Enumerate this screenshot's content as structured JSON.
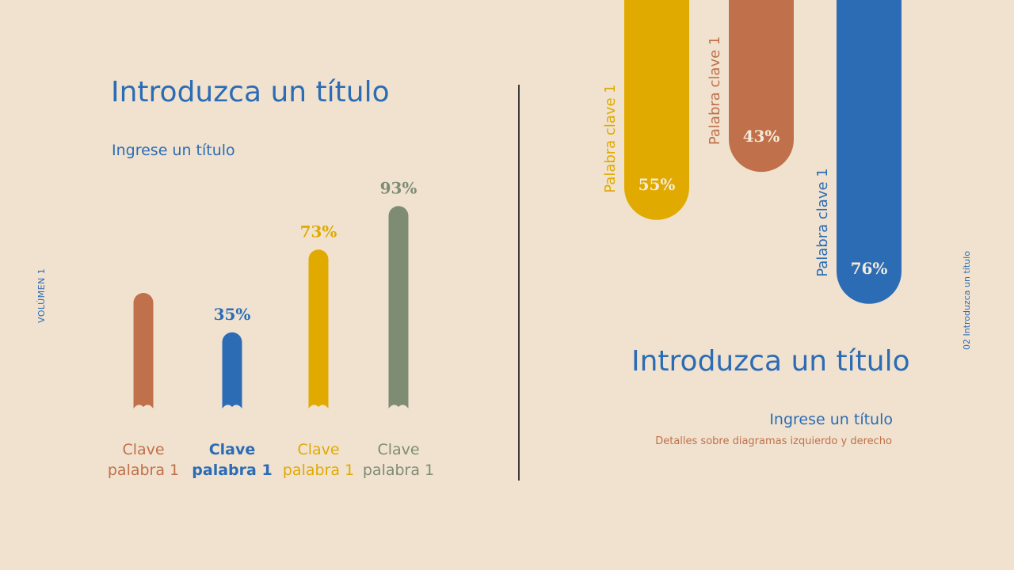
{
  "side": {
    "volume": "VOLÚMEN 1",
    "page": "02 Introduzca un título"
  },
  "left": {
    "title": "Introduzca un título",
    "subtitle": "Ingrese un título"
  },
  "right": {
    "title": "Introduzca un título",
    "subtitle": "Ingrese un título",
    "detail": "Detalles sobre diagramas izquierdo y derecho"
  },
  "colors": {
    "background": "#f0e2cf",
    "blue": "#2b6cb5",
    "orange": "#c0704a",
    "yellow": "#e0aa00",
    "green": "#7e8c74"
  },
  "chart_data": [
    {
      "type": "bar",
      "title": "",
      "categories": [
        {
          "line1": "Clave",
          "line2": "palabra 1",
          "color": "#c0704a"
        },
        {
          "line1": "Clave",
          "line2": "palabra 1",
          "color": "#2b6cb5"
        },
        {
          "line1": "Clave",
          "line2": "palabra 1",
          "color": "#e0aa00"
        },
        {
          "line1": "Clave",
          "line2": "palabra 1",
          "color": "#7e8c74"
        }
      ],
      "values": [
        null,
        35,
        73,
        93
      ],
      "value_labels": [
        "",
        "35%",
        "73%",
        "93%"
      ]
    },
    {
      "type": "bar",
      "title": "",
      "orientation": "hanging from top",
      "categories": [
        {
          "label": "Palabra clave 1",
          "color": "#e0aa00"
        },
        {
          "label": "Palabra clave 1",
          "color": "#c0704a"
        },
        {
          "label": "Palabra clave 1",
          "color": "#2b6cb5"
        }
      ],
      "values": [
        55,
        43,
        76
      ],
      "value_labels": [
        "55%",
        "43%",
        "76%"
      ]
    }
  ]
}
